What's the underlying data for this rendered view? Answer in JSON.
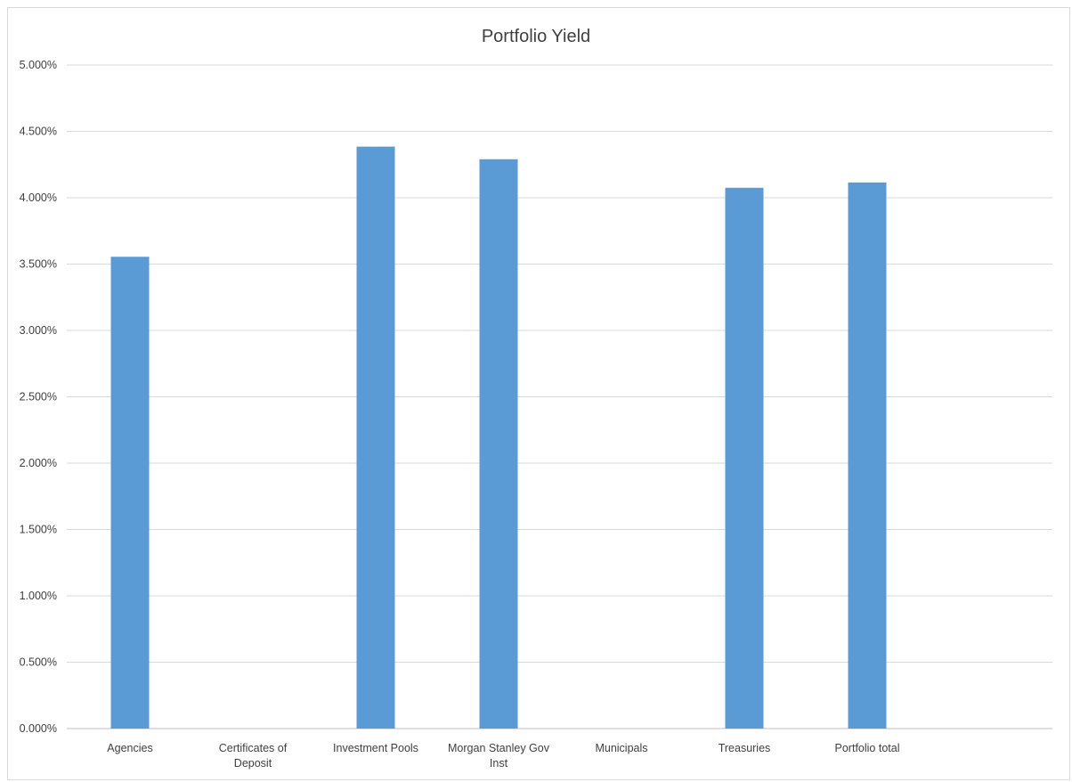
{
  "chart_data": {
    "type": "bar",
    "title": "Portfolio Yield",
    "categories": [
      [
        "Agencies"
      ],
      [
        "Certificates of",
        "Deposit"
      ],
      [
        "Investment Pools"
      ],
      [
        "Morgan Stanley Gov",
        "Inst"
      ],
      [
        "Municipals"
      ],
      [
        "Treasuries"
      ],
      [
        "Portfolio total"
      ]
    ],
    "values": [
      3.555,
      null,
      4.385,
      4.29,
      null,
      4.075,
      4.115
    ],
    "ylim": [
      0,
      5
    ],
    "yticks": [
      "0.000%",
      "0.500%",
      "1.000%",
      "1.500%",
      "2.000%",
      "2.500%",
      "3.000%",
      "3.500%",
      "4.000%",
      "4.500%",
      "5.000%"
    ],
    "ytick_values": [
      0,
      0.5,
      1,
      1.5,
      2,
      2.5,
      3,
      3.5,
      4,
      4.5,
      5
    ],
    "grid": true,
    "colors": {
      "bar": "#5b9bd5",
      "grid": "#d9d9d9",
      "axis": "#bfbfbf",
      "text": "#404040"
    }
  }
}
